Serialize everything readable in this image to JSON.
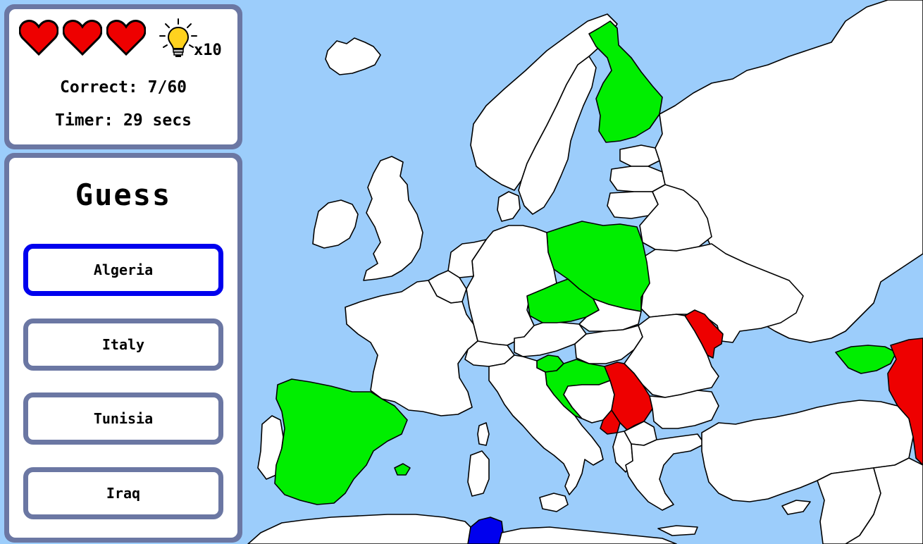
{
  "stats": {
    "lives": 3,
    "hint_icon": "lightbulb-icon",
    "hint_count": "x10",
    "correct_label": "Correct:",
    "correct_value": "7/60",
    "timer_label": "Timer:",
    "timer_value": "29 secs"
  },
  "guess": {
    "title": "Guess",
    "options": [
      {
        "label": "Algeria",
        "selected": true
      },
      {
        "label": "Italy",
        "selected": false
      },
      {
        "label": "Tunisia",
        "selected": false
      },
      {
        "label": "Iraq",
        "selected": false
      }
    ]
  },
  "map": {
    "correct_countries": [
      "Finland",
      "Poland",
      "Czechia",
      "Spain",
      "Croatia",
      "Slovenia",
      "Azerbaijan"
    ],
    "wrong_countries": [
      "Moldova",
      "Serbia",
      "Montenegro",
      "Armenia"
    ],
    "target_country": "Tunisia",
    "colors": {
      "sea": "#9ccdfb",
      "land": "#ffffff",
      "correct": "#00ee00",
      "wrong": "#ee0000",
      "target": "#0000ee",
      "panel_frame": "#6b77a3",
      "selected_frame": "#0000ee",
      "heart": "#ee0000"
    }
  }
}
